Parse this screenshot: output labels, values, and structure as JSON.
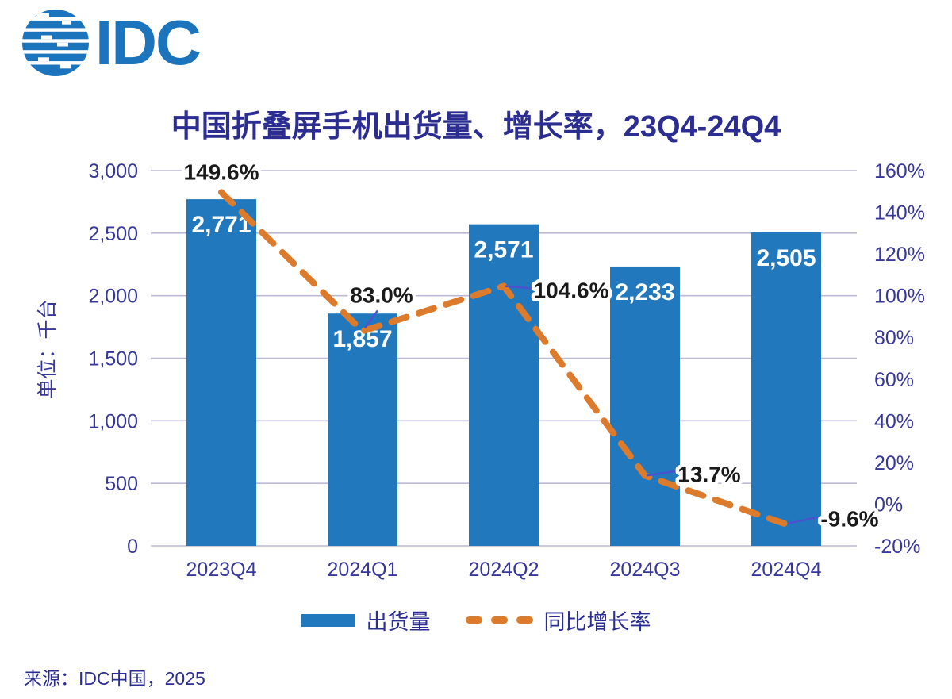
{
  "logo": {
    "text": "IDC",
    "color": "#1C75BC"
  },
  "title": {
    "text": "中国折叠屏手机出货量、增长率，23Q4-24Q4",
    "color": "#2B2D90"
  },
  "colors": {
    "bar": "#2278BD",
    "line": "#DD7B2D",
    "grid": "#BCBAD6",
    "axis_text": "#38389A",
    "value_label_black": "#1A1A1A",
    "bar_label_white": "#FFFFFF",
    "leader_line": "#4953CE"
  },
  "chart_data": {
    "type": "combo-bar-line",
    "categories": [
      "2023Q4",
      "2024Q1",
      "2024Q2",
      "2024Q3",
      "2024Q4"
    ],
    "series": [
      {
        "name": "出货量",
        "type": "bar",
        "axis": "left",
        "values": [
          2771,
          1857,
          2571,
          2233,
          2505
        ],
        "labels": [
          "2,771",
          "1,857",
          "2,571",
          "2,233",
          "2,505"
        ]
      },
      {
        "name": "同比增长率",
        "type": "line",
        "style": "dashed",
        "axis": "right",
        "values": [
          149.6,
          83.0,
          104.6,
          13.7,
          -9.6
        ],
        "labels": [
          "149.6%",
          "83.0%",
          "104.6%",
          "13.7%",
          "-9.6%"
        ]
      }
    ],
    "left_axis": {
      "label": "单位：千台",
      "min": 0,
      "max": 3000,
      "step": 500,
      "ticks": [
        "0",
        "500",
        "1,000",
        "1,500",
        "2,000",
        "2,500",
        "3,000"
      ]
    },
    "right_axis": {
      "min": -20,
      "max": 160,
      "step": 20,
      "ticks": [
        "-20%",
        "0%",
        "20%",
        "40%",
        "60%",
        "80%",
        "100%",
        "120%",
        "140%",
        "160%"
      ]
    },
    "grid": true,
    "legend_position": "bottom"
  },
  "legend": [
    {
      "label": "出货量",
      "swatch": "bar"
    },
    {
      "label": "同比增长率",
      "swatch": "dashed-line"
    }
  ],
  "source": "来源：IDC中国，2025"
}
